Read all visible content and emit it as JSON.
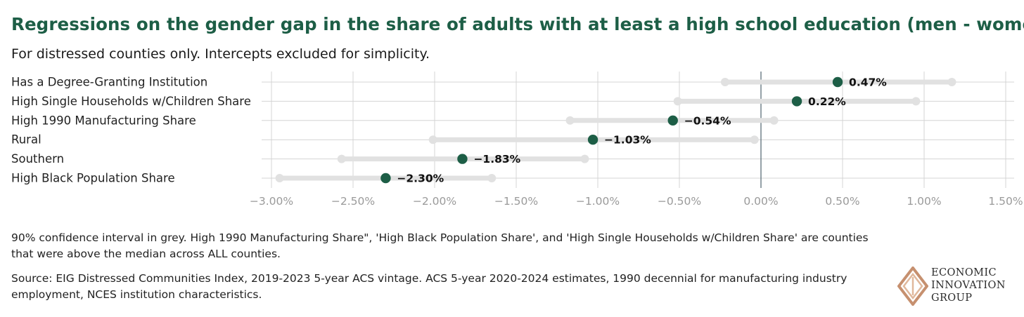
{
  "header": {
    "title": "Regressions on the gender gap in the share of adults with at least a high school education (men - women)",
    "subtitle": "For distressed counties only. Intercepts excluded for simplicity."
  },
  "chart_data": {
    "type": "dot-interval",
    "title": "Regressions on the gender gap in the share of adults with at least a high school education (men - women)",
    "subtitle": "For distressed counties only. Intercepts excluded for simplicity.",
    "xlim": [
      -3.0,
      1.5
    ],
    "x_ticks": [
      -3.0,
      -2.5,
      -2.0,
      -1.5,
      -1.0,
      -0.5,
      0.0,
      0.5,
      1.0,
      1.5
    ],
    "x_tick_labels": [
      "−3.00%",
      "−2.50%",
      "−2.00%",
      "−1.50%",
      "−1.00%",
      "−0.50%",
      "0.00%",
      "0.50%",
      "1.00%",
      "1.50%"
    ],
    "ci_level": "90%",
    "grid": true,
    "rows": [
      {
        "label": "Has a Degree-Granting Institution",
        "value": 0.47,
        "ci": [
          -0.22,
          1.17
        ],
        "value_label": "0.47%"
      },
      {
        "label": "High Single Households w/Children Share",
        "value": 0.22,
        "ci": [
          -0.51,
          0.95
        ],
        "value_label": "0.22%"
      },
      {
        "label": "High 1990 Manufacturing Share",
        "value": -0.54,
        "ci": [
          -1.17,
          0.08
        ],
        "value_label": "−0.54%"
      },
      {
        "label": "Rural",
        "value": -1.03,
        "ci": [
          -2.01,
          -0.04
        ],
        "value_label": "−1.03%"
      },
      {
        "label": "Southern",
        "value": -1.83,
        "ci": [
          -2.57,
          -1.08
        ],
        "value_label": "−1.83%"
      },
      {
        "label": "High Black Population Share",
        "value": -2.3,
        "ci": [
          -2.95,
          -1.65
        ],
        "value_label": "−2.30%"
      }
    ],
    "colors": {
      "point": "#1d5e46",
      "ci": "#e1e1e1",
      "grid": "#d4d4d4",
      "zero_line": "#5c6f7a"
    }
  },
  "footer": {
    "note": "90% confidence interval in grey. High 1990 Manufacturing Share\", 'High Black Population Share', and 'High Single Households w/Children Share' are counties that were above the median across ALL counties.",
    "source": "Source: EIG Distressed Communities Index, 2019-2023 5-year ACS vintage. ACS 5-year 2020-2024 estimates, 1990 decennial for manufacturing industry employment, NCES institution characteristics."
  },
  "logo": {
    "line1": "ECONOMIC",
    "line2": "INNOVATION",
    "line3": "GROUP",
    "color_outer": "#c6906f",
    "color_inner": "#e0b89c"
  }
}
